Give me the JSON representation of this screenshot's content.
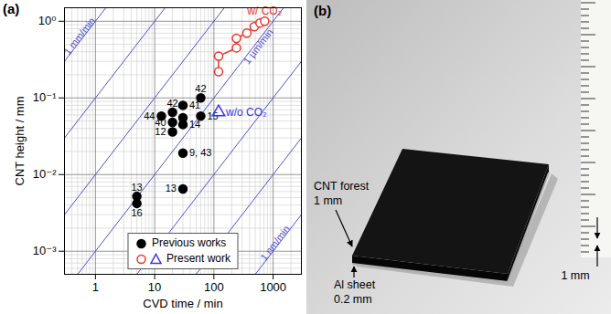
{
  "chart_data": {
    "type": "scatter",
    "title": "(a)",
    "x_label": "CVD time / min",
    "y_label": "CNT height / mm",
    "log": true,
    "grid": true,
    "legend": "lower center",
    "xlim": [
      0.3,
      3000
    ],
    "xticks": [
      1,
      10,
      100,
      1000
    ],
    "ylim": [
      0.0005,
      1.5
    ],
    "yticks": [
      {
        "value": 0.001,
        "label": "10⁻³"
      },
      {
        "value": 0.01,
        "label": "10⁻²"
      },
      {
        "value": 0.1,
        "label": "10⁻¹"
      },
      {
        "value": 1,
        "label": "10⁰"
      }
    ],
    "rate_lines": {
      "color": "#5050d0",
      "values": [
        1,
        0.1,
        0.01,
        0.001,
        0.0001,
        1e-05,
        1e-06
      ],
      "labels": [
        {
          "value": 1,
          "label": "1 mm/min"
        },
        {
          "value": 0.001,
          "label": "1 µm/min"
        },
        {
          "value": 1e-06,
          "label": "1 nm/min"
        }
      ]
    },
    "series": [
      {
        "name": "Previous works",
        "type": "scatter",
        "color": "#000000",
        "marker": "filled_circle",
        "x": [
          13,
          20,
          20,
          20,
          30,
          30,
          30,
          60,
          60,
          30,
          30,
          5,
          5
        ],
        "values": [
          0.058,
          0.048,
          0.036,
          0.065,
          0.08,
          0.055,
          0.045,
          0.1,
          0.058,
          0.019,
          0.0065,
          0.0052,
          0.0042
        ],
        "labels": [
          "44",
          "40",
          "12",
          "42",
          "41",
          null,
          "14",
          "42",
          "15",
          "9, 43",
          "13",
          "13",
          "16"
        ]
      },
      {
        "name": "Present work",
        "series": [
          {
            "name": "w/ CO₂",
            "type": "line",
            "color": "#e8352a",
            "marker": "open_circle",
            "x": [
              120,
              120,
              240,
              240,
              360,
              480,
              600,
              720
            ],
            "values": [
              0.22,
              0.35,
              0.45,
              0.6,
              0.7,
              0.85,
              0.95,
              1.0
            ]
          },
          {
            "name": "w/o CO₂",
            "type": "scatter",
            "color": "#3535f0",
            "marker": "open_triangle",
            "x": [
              120
            ],
            "values": [
              0.065
            ]
          }
        ]
      }
    ]
  },
  "photo": {
    "title": "(b)",
    "callouts": [
      {
        "lines": [
          "CNT forest",
          "1 mm"
        ]
      },
      {
        "lines": [
          "Al sheet",
          "0.2 mm"
        ]
      },
      {
        "lines": [
          "1 mm"
        ]
      }
    ]
  }
}
